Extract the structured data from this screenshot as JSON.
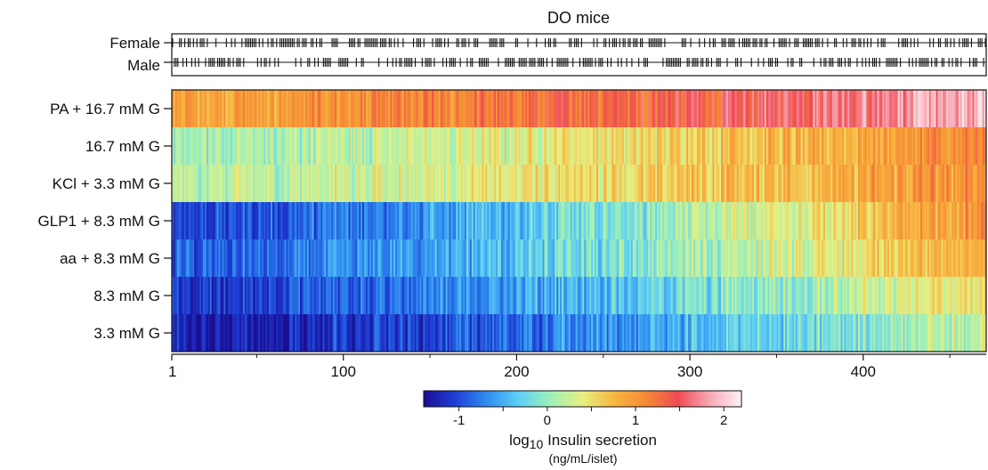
{
  "chart_data": {
    "type": "heatmap",
    "title": "DO mice",
    "sex_track": {
      "labels": [
        "Female",
        "Male"
      ]
    },
    "rows": [
      {
        "label": "PA + 16.7 mM G",
        "start": 0.9,
        "end": 1.9,
        "noise": 0.22
      },
      {
        "label": "16.7 mM G",
        "start": 0.05,
        "end": 1.1,
        "noise": 0.22
      },
      {
        "label": "KCl + 3.3 mM G",
        "start": 0.15,
        "end": 1.05,
        "noise": 0.22
      },
      {
        "label": "GLP1 + 8.3 mM G",
        "start": -1.05,
        "end": 1.05,
        "noise": 0.22
      },
      {
        "label": "aa + 8.3 mM G",
        "start": -0.95,
        "end": 0.85,
        "noise": 0.24
      },
      {
        "label": "8.3 mM G",
        "start": -1.1,
        "end": 0.55,
        "noise": 0.24
      },
      {
        "label": "3.3 mM G",
        "start": -1.35,
        "end": 0.25,
        "noise": 0.25
      }
    ],
    "x_axis": {
      "min": 1,
      "max": 470,
      "ticks": [
        1,
        100,
        200,
        300,
        400
      ],
      "tick_labels": [
        "1",
        "100",
        "200",
        "300",
        "400"
      ]
    },
    "colorbar": {
      "min": -1.4,
      "max": 2.2,
      "ticks": [
        -1,
        0,
        1,
        2
      ],
      "tick_labels": [
        "-1",
        "0",
        "1",
        "2"
      ],
      "label_prefix": "log",
      "label_subscript": "10",
      "label_main": " Insulin secretion",
      "units": "(ng/mL/islet)",
      "colors": [
        "#1a0f94",
        "#1e3fd6",
        "#2f8ef0",
        "#5fd0f5",
        "#9ff0b8",
        "#e8ef80",
        "#f7b640",
        "#f58a35",
        "#ef4a52",
        "#f7a9b5",
        "#fdf2f4"
      ]
    }
  }
}
